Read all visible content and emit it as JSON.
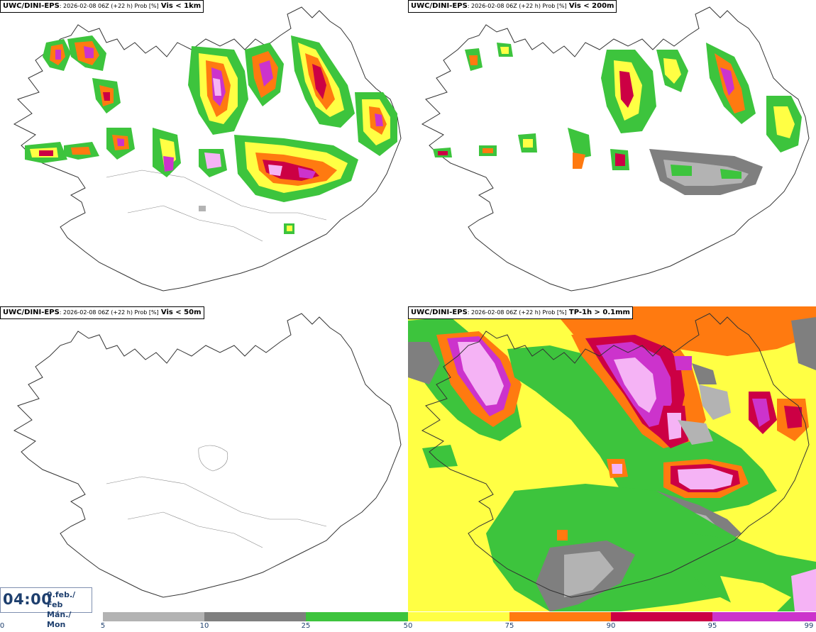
{
  "panels": [
    {
      "model": "UWC/DINI-EPS",
      "run": ": 2026-02-08 06Z (+22 h) Prob [%]",
      "variable": "Vis < 1km"
    },
    {
      "model": "UWC/DINI-EPS",
      "run": ": 2026-02-08 06Z (+22 h) Prob [%]",
      "variable": "Vis < 200m"
    },
    {
      "model": "UWC/DINI-EPS",
      "run": ": 2026-02-08 06Z (+22 h) Prob [%]",
      "variable": "Vis < 50m"
    },
    {
      "model": "UWC/DINI-EPS",
      "run": ": 2026-02-08 06Z (+22 h) Prob [%]",
      "variable": "TP-1h > 0.1mm"
    }
  ],
  "valid_time": {
    "time": "04:00",
    "date_line1": "9.feb./ Feb",
    "date_line2": "Mán./ Mon"
  },
  "colorbar": {
    "ticks": [
      "0",
      "5",
      "10",
      "25",
      "50",
      "75",
      "90",
      "95",
      "99"
    ],
    "colors": [
      "#ffffff",
      "#b3b3b3",
      "#7f7f7f",
      "#3dc43d",
      "#ffff44",
      "#ff7a10",
      "#cc0044",
      "#cc33cc",
      "#f5b3f5"
    ]
  }
}
